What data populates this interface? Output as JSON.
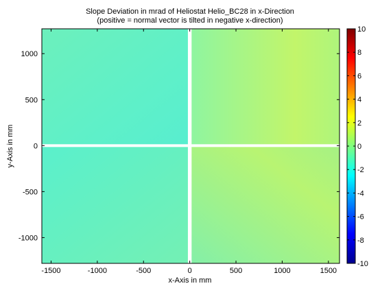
{
  "chart_data": {
    "type": "heatmap",
    "title": "Slope Deviation in mrad of Heliostat Helio_BC28 in x-Direction",
    "subtitle": "(positive = normal vector is tilted in negative x-direction)",
    "xlabel": "x-Axis in mm",
    "ylabel": "y-Axis in mm",
    "xlim": [
      -1600,
      1620
    ],
    "ylim": [
      -1280,
      1270
    ],
    "x_ticks": [
      -1500,
      -1000,
      -500,
      0,
      500,
      1000,
      1500
    ],
    "y_ticks": [
      -1000,
      -500,
      0,
      500,
      1000
    ],
    "colorbar": {
      "label": "",
      "range": [
        -10,
        10
      ],
      "ticks": [
        10,
        8,
        6,
        4,
        2,
        0,
        -2,
        -4,
        -6,
        -8,
        -10
      ],
      "colormap": "jet"
    },
    "panels": [
      {
        "name": "top-left",
        "x_range": [
          -1600,
          -20
        ],
        "y_range": [
          15,
          1270
        ],
        "mean_value": -1.0
      },
      {
        "name": "top-right",
        "x_range": [
          20,
          1620
        ],
        "y_range": [
          15,
          1270
        ],
        "mean_value": 0.6
      },
      {
        "name": "bottom-left",
        "x_range": [
          -1600,
          -20
        ],
        "y_range": [
          -1280,
          -15
        ],
        "mean_value": -1.1
      },
      {
        "name": "bottom-right",
        "x_range": [
          20,
          1620
        ],
        "y_range": [
          -1280,
          -15
        ],
        "mean_value": 0.4
      }
    ]
  }
}
